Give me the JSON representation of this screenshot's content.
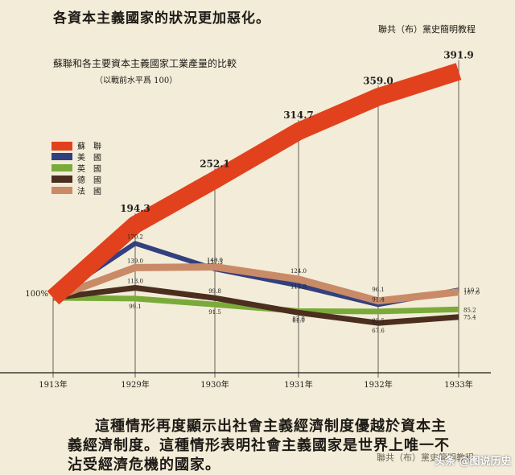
{
  "top_text": "各資本主義國家的狀況更加惡化。",
  "header_source": "聯共（布）黨史簡明教程",
  "caption": {
    "line1": "這種情形再度顯示出社會主義經濟制度優越於資本主",
    "line2": "義經濟制度。這種情形表明社會主義國家是世界上唯一不",
    "line3": "沾受經濟危機的國家。"
  },
  "footer_source": "聯共（布）黨史簡明教程",
  "watermark": "头条 @图说历史",
  "chart_data": {
    "type": "line",
    "title": "蘇聯和各主要資本主義國家工業產量的比較",
    "subtitle": "（以戰前水平爲 100）",
    "xlabel": "",
    "ylabel": "",
    "categories": [
      "1913年",
      "1929年",
      "1930年",
      "1931年",
      "1932年",
      "1933年"
    ],
    "start_label": "100%",
    "ylim": [
      60,
      400
    ],
    "legend_position": "left",
    "grid": false,
    "series": [
      {
        "name": "蘇　聯",
        "color": "#e2411e",
        "values": [
          100,
          194.3,
          252.1,
          314.7,
          359.0,
          391.9
        ],
        "labels": [
          "",
          "194.3",
          "252.1",
          "314.7",
          "359.0",
          "391.9"
        ]
      },
      {
        "name": "美　國",
        "color": "#33407f",
        "values": [
          100,
          170.2,
          137.3,
          115.9,
          91.4,
          110.2
        ],
        "labels": [
          "",
          "170.2",
          "137.3",
          "115.9",
          "91.4",
          "110.2"
        ]
      },
      {
        "name": "英　國",
        "color": "#7aab3a",
        "values": [
          100,
          99.1,
          91.5,
          83.0,
          82.5,
          85.2
        ],
        "labels": [
          "",
          "99.1",
          "91.5",
          "83.0",
          "82.5",
          "85.2"
        ]
      },
      {
        "name": "德　國",
        "color": "#4b2e1e",
        "values": [
          100,
          113.0,
          99.8,
          81.0,
          67.6,
          75.4
        ],
        "labels": [
          "",
          "113.0",
          "99.8",
          "81.0",
          "67.6",
          "75.4"
        ]
      },
      {
        "name": "法　國",
        "color": "#c98a68",
        "values": [
          100,
          139.0,
          140.0,
          124.0,
          96.1,
          107.6
        ],
        "labels": [
          "",
          "139.0",
          "140.0",
          "124.0",
          "96.1",
          "107.6"
        ]
      }
    ]
  }
}
